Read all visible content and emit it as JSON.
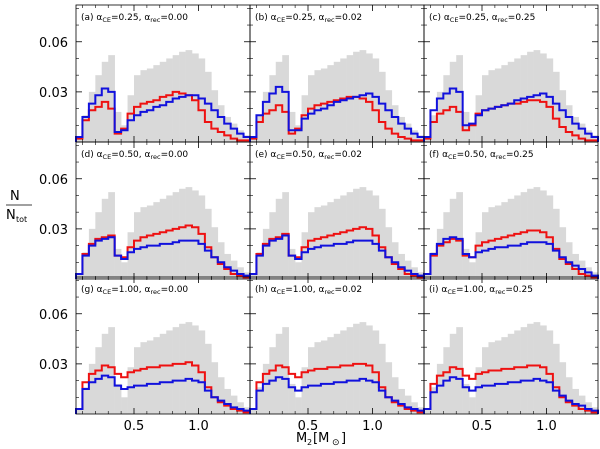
{
  "figure": {
    "ylabel_num": "N",
    "ylabel_den_main": "N",
    "ylabel_den_sub": "tot",
    "xlabel_main": "M",
    "xlabel_sub": "2",
    "xlabel_unit_open": "[M",
    "xlabel_unit_sun": "⊙",
    "xlabel_unit_close": "]",
    "colors": {
      "gray": "#d9d9d9",
      "red": "#ee1111",
      "blue": "#1111dd"
    }
  },
  "chart_data": {
    "type": "histogram-grid",
    "rows": 3,
    "cols": 3,
    "bins_x": [
      0.05,
      0.1,
      0.15,
      0.2,
      0.25,
      0.3,
      0.35,
      0.4,
      0.45,
      0.5,
      0.55,
      0.6,
      0.65,
      0.7,
      0.75,
      0.8,
      0.85,
      0.9,
      0.95,
      1.0,
      1.05,
      1.1,
      1.15,
      1.2,
      1.25,
      1.3,
      1.35,
      1.4
    ],
    "xlim": [
      0.05,
      1.4
    ],
    "ylim": [
      0,
      0.082
    ],
    "xticks": [
      0.5,
      1.0
    ],
    "xtick_labels": [
      "0.5",
      "1.0"
    ],
    "yticks": [
      0.03,
      0.06
    ],
    "ytick_labels": [
      "0.03",
      "0.06"
    ],
    "series_names": [
      "total (gray)",
      "red",
      "blue"
    ],
    "gray": [
      0.003,
      0.016,
      0.03,
      0.04,
      0.048,
      0.052,
      0.018,
      0.01,
      0.028,
      0.04,
      0.043,
      0.044,
      0.046,
      0.048,
      0.05,
      0.052,
      0.054,
      0.055,
      0.053,
      0.05,
      0.042,
      0.031,
      0.022,
      0.015,
      0.011,
      0.007,
      0.004
    ],
    "panels": [
      {
        "label": "(a)",
        "alpha_ce": "0.25",
        "alpha_rec": "0.00",
        "red": [
          0.002,
          0.013,
          0.019,
          0.021,
          0.024,
          0.02,
          0.005,
          0.008,
          0.017,
          0.021,
          0.023,
          0.024,
          0.025,
          0.027,
          0.028,
          0.03,
          0.029,
          0.028,
          0.025,
          0.019,
          0.012,
          0.008,
          0.006,
          0.004,
          0.002,
          0.001,
          0.001
        ],
        "blue": [
          0.003,
          0.015,
          0.023,
          0.028,
          0.032,
          0.03,
          0.006,
          0.007,
          0.013,
          0.016,
          0.018,
          0.019,
          0.021,
          0.022,
          0.024,
          0.026,
          0.027,
          0.028,
          0.028,
          0.026,
          0.023,
          0.019,
          0.015,
          0.011,
          0.008,
          0.005,
          0.003
        ]
      },
      {
        "label": "(b)",
        "alpha_ce": "0.25",
        "alpha_rec": "0.02",
        "red": [
          0.002,
          0.012,
          0.017,
          0.019,
          0.022,
          0.018,
          0.005,
          0.008,
          0.016,
          0.02,
          0.022,
          0.023,
          0.024,
          0.025,
          0.026,
          0.027,
          0.027,
          0.026,
          0.024,
          0.019,
          0.012,
          0.008,
          0.005,
          0.003,
          0.002,
          0.001,
          0.001
        ],
        "blue": [
          0.003,
          0.016,
          0.024,
          0.029,
          0.033,
          0.03,
          0.007,
          0.007,
          0.014,
          0.017,
          0.019,
          0.02,
          0.022,
          0.024,
          0.025,
          0.026,
          0.027,
          0.028,
          0.029,
          0.027,
          0.023,
          0.019,
          0.015,
          0.011,
          0.008,
          0.005,
          0.003
        ]
      },
      {
        "label": "(c)",
        "alpha_ce": "0.25",
        "alpha_rec": "0.25",
        "red": [
          0.002,
          0.012,
          0.017,
          0.019,
          0.021,
          0.018,
          0.007,
          0.01,
          0.017,
          0.019,
          0.02,
          0.021,
          0.022,
          0.023,
          0.023,
          0.024,
          0.025,
          0.025,
          0.024,
          0.021,
          0.014,
          0.009,
          0.006,
          0.004,
          0.002,
          0.001,
          0.001
        ],
        "blue": [
          0.003,
          0.019,
          0.026,
          0.029,
          0.032,
          0.03,
          0.01,
          0.011,
          0.016,
          0.019,
          0.02,
          0.021,
          0.022,
          0.023,
          0.025,
          0.026,
          0.027,
          0.028,
          0.029,
          0.027,
          0.023,
          0.019,
          0.015,
          0.011,
          0.008,
          0.005,
          0.003
        ]
      },
      {
        "label": "(d)",
        "alpha_ce": "0.50",
        "alpha_rec": "0.00",
        "red": [
          0.003,
          0.015,
          0.021,
          0.024,
          0.025,
          0.026,
          0.014,
          0.013,
          0.019,
          0.023,
          0.025,
          0.026,
          0.027,
          0.028,
          0.029,
          0.03,
          0.031,
          0.032,
          0.031,
          0.027,
          0.019,
          0.013,
          0.009,
          0.006,
          0.003,
          0.002,
          0.001
        ],
        "blue": [
          0.003,
          0.014,
          0.02,
          0.023,
          0.024,
          0.025,
          0.014,
          0.012,
          0.016,
          0.018,
          0.019,
          0.02,
          0.02,
          0.021,
          0.021,
          0.022,
          0.023,
          0.023,
          0.023,
          0.021,
          0.017,
          0.013,
          0.01,
          0.007,
          0.005,
          0.003,
          0.002
        ]
      },
      {
        "label": "(e)",
        "alpha_ce": "0.50",
        "alpha_rec": "0.02",
        "red": [
          0.003,
          0.015,
          0.021,
          0.024,
          0.025,
          0.027,
          0.014,
          0.013,
          0.019,
          0.023,
          0.024,
          0.025,
          0.026,
          0.027,
          0.028,
          0.029,
          0.03,
          0.031,
          0.03,
          0.026,
          0.019,
          0.013,
          0.009,
          0.006,
          0.003,
          0.002,
          0.001
        ],
        "blue": [
          0.003,
          0.014,
          0.02,
          0.023,
          0.024,
          0.026,
          0.014,
          0.012,
          0.016,
          0.018,
          0.019,
          0.02,
          0.02,
          0.021,
          0.021,
          0.022,
          0.023,
          0.023,
          0.023,
          0.021,
          0.017,
          0.013,
          0.01,
          0.007,
          0.005,
          0.003,
          0.002
        ]
      },
      {
        "label": "(f)",
        "alpha_ce": "0.50",
        "alpha_rec": "0.25",
        "red": [
          0.003,
          0.014,
          0.02,
          0.022,
          0.024,
          0.023,
          0.014,
          0.013,
          0.02,
          0.022,
          0.023,
          0.024,
          0.025,
          0.026,
          0.027,
          0.028,
          0.029,
          0.029,
          0.028,
          0.025,
          0.018,
          0.012,
          0.009,
          0.006,
          0.003,
          0.002,
          0.001
        ],
        "blue": [
          0.003,
          0.015,
          0.021,
          0.024,
          0.025,
          0.024,
          0.015,
          0.013,
          0.016,
          0.017,
          0.018,
          0.019,
          0.019,
          0.02,
          0.02,
          0.021,
          0.022,
          0.022,
          0.022,
          0.021,
          0.017,
          0.013,
          0.01,
          0.008,
          0.006,
          0.004,
          0.002
        ]
      },
      {
        "label": "(g)",
        "alpha_ce": "1.00",
        "alpha_rec": "0.00",
        "red": [
          0.003,
          0.019,
          0.024,
          0.026,
          0.029,
          0.028,
          0.024,
          0.022,
          0.025,
          0.026,
          0.027,
          0.028,
          0.028,
          0.029,
          0.029,
          0.03,
          0.03,
          0.031,
          0.029,
          0.025,
          0.016,
          0.01,
          0.007,
          0.005,
          0.003,
          0.002,
          0.001
        ],
        "blue": [
          0.003,
          0.015,
          0.019,
          0.021,
          0.023,
          0.022,
          0.017,
          0.015,
          0.016,
          0.017,
          0.017,
          0.018,
          0.018,
          0.019,
          0.019,
          0.02,
          0.02,
          0.021,
          0.02,
          0.019,
          0.014,
          0.01,
          0.008,
          0.006,
          0.004,
          0.003,
          0.002
        ]
      },
      {
        "label": "(h)",
        "alpha_ce": "1.00",
        "alpha_rec": "0.02",
        "red": [
          0.003,
          0.019,
          0.024,
          0.026,
          0.029,
          0.028,
          0.024,
          0.022,
          0.025,
          0.026,
          0.027,
          0.027,
          0.028,
          0.028,
          0.029,
          0.029,
          0.03,
          0.03,
          0.029,
          0.025,
          0.016,
          0.01,
          0.007,
          0.005,
          0.003,
          0.002,
          0.001
        ],
        "blue": [
          0.003,
          0.014,
          0.018,
          0.02,
          0.022,
          0.021,
          0.016,
          0.014,
          0.016,
          0.017,
          0.017,
          0.018,
          0.018,
          0.019,
          0.019,
          0.02,
          0.02,
          0.021,
          0.02,
          0.019,
          0.014,
          0.01,
          0.008,
          0.006,
          0.004,
          0.003,
          0.002
        ]
      },
      {
        "label": "(i)",
        "alpha_ce": "1.00",
        "alpha_rec": "0.25",
        "red": [
          0.003,
          0.018,
          0.023,
          0.025,
          0.028,
          0.027,
          0.023,
          0.021,
          0.024,
          0.025,
          0.026,
          0.026,
          0.027,
          0.027,
          0.028,
          0.028,
          0.029,
          0.029,
          0.028,
          0.024,
          0.016,
          0.01,
          0.007,
          0.005,
          0.003,
          0.002,
          0.001
        ],
        "blue": [
          0.003,
          0.013,
          0.017,
          0.02,
          0.022,
          0.021,
          0.016,
          0.014,
          0.016,
          0.017,
          0.017,
          0.018,
          0.018,
          0.019,
          0.019,
          0.02,
          0.02,
          0.021,
          0.02,
          0.019,
          0.014,
          0.011,
          0.008,
          0.006,
          0.005,
          0.003,
          0.002
        ]
      }
    ]
  }
}
